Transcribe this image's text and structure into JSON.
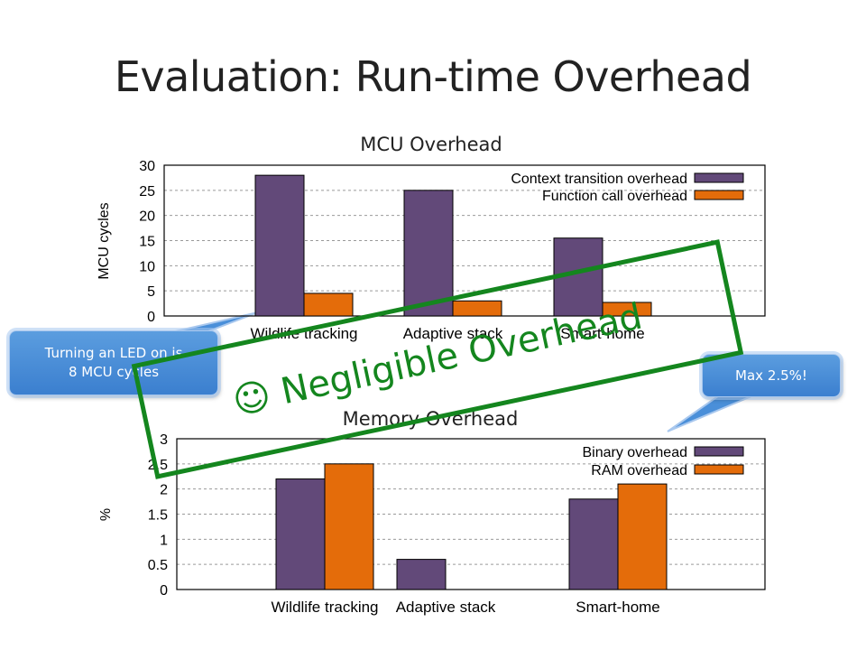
{
  "slide": {
    "title": "Evaluation: Run-time Overhead"
  },
  "colors": {
    "series_primary": "#624979",
    "series_secondary": "#e46c0a",
    "stamp": "#14861e",
    "callout": "#4a8fd9"
  },
  "callouts": {
    "led": [
      "Turning an LED on is",
      "8 MCU cycles"
    ],
    "max": "Max 2.5%!"
  },
  "stamp": {
    "icon": "smiley-icon",
    "glyph": "☺",
    "text": "Negligible Overhead"
  },
  "chart_data": [
    {
      "type": "bar",
      "title": "MCU Overhead",
      "ylabel": "MCU cycles",
      "xlabel": "",
      "categories": [
        "Wildlife tracking",
        "Adaptive stack",
        "Smart-home"
      ],
      "series": [
        {
          "name": "Context transition overhead",
          "values": [
            28,
            25,
            15.5
          ]
        },
        {
          "name": "Function call overhead",
          "values": [
            4.5,
            3,
            2.7
          ]
        }
      ],
      "ylim": [
        0,
        30
      ],
      "yticks": [
        0,
        5,
        10,
        15,
        20,
        25,
        30
      ],
      "grid": "horizontal-dashed",
      "legend": "top-right"
    },
    {
      "type": "bar",
      "title": "Memory Overhead",
      "ylabel": "%",
      "xlabel": "",
      "categories": [
        "Wildlife tracking",
        "Adaptive stack",
        "Smart-home"
      ],
      "series": [
        {
          "name": "Binary overhead",
          "values": [
            2.2,
            0.6,
            1.8
          ]
        },
        {
          "name": "RAM overhead",
          "values": [
            2.5,
            0,
            2.1
          ]
        }
      ],
      "ylim": [
        0,
        3
      ],
      "yticks": [
        0,
        0.5,
        1,
        1.5,
        2,
        2.5,
        3
      ],
      "grid": "horizontal-dashed",
      "legend": "top-right"
    }
  ]
}
